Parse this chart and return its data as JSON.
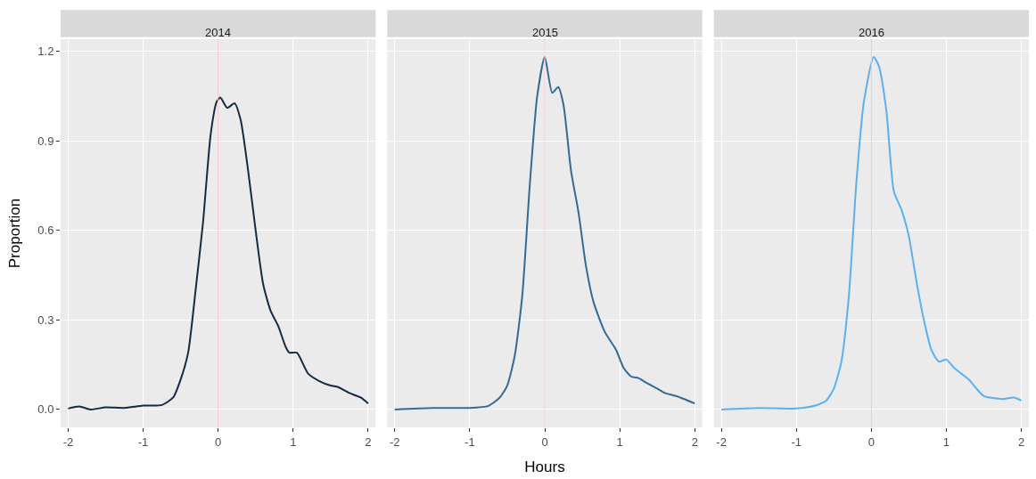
{
  "chart_data": [
    {
      "type": "line",
      "title": "2014",
      "ylabel": "Proportion",
      "xlim": [
        -2.1,
        2.1
      ],
      "xticks": [
        -2,
        -1,
        0,
        1,
        2
      ],
      "ylim": [
        -0.06,
        1.24
      ],
      "yticks": [
        {
          "value": 0,
          "label": "0.0"
        },
        0.3,
        0.6,
        0.9,
        1.2
      ],
      "grid": true,
      "ref_lines": [
        {
          "axis": "x",
          "value": 0,
          "color": "#ffc0cb"
        }
      ],
      "x": [
        -2,
        -1.85,
        -1.7,
        -1.5,
        -1.25,
        -1,
        -0.75,
        -0.6,
        -0.5,
        -0.4,
        -0.3,
        -0.2,
        -0.1,
        -0.02,
        0.03,
        0.12,
        0.22,
        0.3,
        0.4,
        0.5,
        0.6,
        0.7,
        0.8,
        0.9,
        0.95,
        1.05,
        1.2,
        1.35,
        1.5,
        1.6,
        1.75,
        1.9,
        2
      ],
      "series": [
        {
          "color": "#132b43",
          "values": [
            0.003,
            0.01,
            0.0,
            0.007,
            0.005,
            0.013,
            0.015,
            0.04,
            0.1,
            0.19,
            0.4,
            0.63,
            0.92,
            1.03,
            1.045,
            1.01,
            1.025,
            0.97,
            0.8,
            0.6,
            0.42,
            0.33,
            0.28,
            0.21,
            0.19,
            0.19,
            0.12,
            0.095,
            0.08,
            0.075,
            0.055,
            0.04,
            0.02
          ]
        }
      ]
    },
    {
      "type": "line",
      "title": "2015",
      "xlabel": "Hours",
      "tick_labels": "x",
      "xlim": [
        -2.1,
        2.1
      ],
      "xticks": [
        -2,
        -1,
        0,
        1,
        2
      ],
      "ylim": [
        -0.06,
        1.24
      ],
      "yticks": [
        0,
        0.3,
        0.6,
        0.9,
        1.2
      ],
      "grid": true,
      "ref_lines": [
        {
          "axis": "x",
          "value": 0,
          "color": "#ffc0cb"
        }
      ],
      "x": [
        -2,
        -1.5,
        -1,
        -0.75,
        -0.6,
        -0.5,
        -0.4,
        -0.3,
        -0.2,
        -0.1,
        0,
        0.1,
        0.18,
        0.25,
        0.35,
        0.45,
        0.55,
        0.65,
        0.8,
        0.95,
        1.05,
        1.15,
        1.25,
        1.35,
        1.5,
        1.6,
        1.75,
        2
      ],
      "series": [
        {
          "color": "#336a98",
          "values": [
            0.0,
            0.005,
            0.005,
            0.012,
            0.04,
            0.08,
            0.18,
            0.38,
            0.75,
            1.05,
            1.18,
            1.06,
            1.08,
            1.02,
            0.8,
            0.66,
            0.48,
            0.36,
            0.26,
            0.2,
            0.14,
            0.11,
            0.105,
            0.09,
            0.07,
            0.055,
            0.045,
            0.02
          ]
        }
      ]
    },
    {
      "type": "line",
      "title": "2016",
      "tick_labels": "x",
      "xlim": [
        -2.1,
        2.1
      ],
      "xticks": [
        -2,
        -1,
        0,
        1,
        2
      ],
      "ylim": [
        -0.06,
        1.24
      ],
      "yticks": [
        0,
        0.3,
        0.6,
        0.9,
        1.2
      ],
      "grid": true,
      "ref_lines": [
        {
          "axis": "x",
          "value": 0,
          "color": "#ffc0cb"
        }
      ],
      "x": [
        -2,
        -1.5,
        -1,
        -0.75,
        -0.6,
        -0.5,
        -0.4,
        -0.3,
        -0.2,
        -0.1,
        0.03,
        0.1,
        0.2,
        0.3,
        0.4,
        0.5,
        0.6,
        0.7,
        0.8,
        0.9,
        1,
        1.1,
        1.2,
        1.3,
        1.4,
        1.5,
        1.75,
        1.9,
        2
      ],
      "series": [
        {
          "color": "#56b1f7",
          "values": [
            0.0,
            0.005,
            0.003,
            0.013,
            0.03,
            0.07,
            0.16,
            0.38,
            0.76,
            1.03,
            1.18,
            1.15,
            1.0,
            0.73,
            0.67,
            0.58,
            0.43,
            0.3,
            0.2,
            0.16,
            0.167,
            0.14,
            0.12,
            0.1,
            0.07,
            0.045,
            0.035,
            0.04,
            0.03
          ]
        }
      ]
    }
  ]
}
